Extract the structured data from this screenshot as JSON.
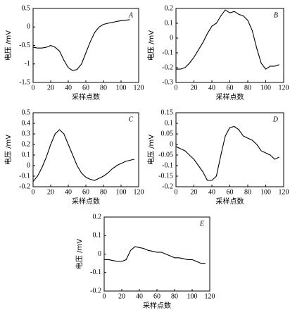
{
  "chart_data": [
    {
      "type": "line",
      "label": "A",
      "xlabel": "采样点数",
      "ylabel": "电压 /mV",
      "x": [
        0,
        5,
        10,
        15,
        20,
        25,
        30,
        35,
        40,
        45,
        50,
        55,
        60,
        65,
        70,
        75,
        80,
        85,
        90,
        95,
        100,
        105,
        110
      ],
      "values": [
        -0.55,
        -0.57,
        -0.57,
        -0.55,
        -0.5,
        -0.55,
        -0.65,
        -0.9,
        -1.1,
        -1.18,
        -1.15,
        -1.0,
        -0.7,
        -0.4,
        -0.15,
        0.0,
        0.07,
        0.1,
        0.12,
        0.15,
        0.17,
        0.18,
        0.2
      ],
      "xlim": [
        0,
        120
      ],
      "xticks": [
        0,
        20,
        40,
        60,
        80,
        100,
        120
      ],
      "ylim": [
        -1.5,
        0.5
      ],
      "yticks": [
        -1.5,
        -1,
        -0.5,
        0,
        0.5
      ],
      "color": "#000000"
    },
    {
      "type": "line",
      "label": "B",
      "xlabel": "采样点数",
      "ylabel": "电压 /mV",
      "x": [
        0,
        5,
        10,
        15,
        20,
        25,
        30,
        35,
        40,
        45,
        50,
        55,
        60,
        65,
        70,
        75,
        80,
        85,
        90,
        95,
        100,
        105,
        110,
        115
      ],
      "values": [
        -0.21,
        -0.21,
        -0.2,
        -0.17,
        -0.13,
        -0.08,
        -0.03,
        0.03,
        0.08,
        0.1,
        0.15,
        0.19,
        0.17,
        0.18,
        0.16,
        0.15,
        0.12,
        0.05,
        -0.07,
        -0.17,
        -0.21,
        -0.19,
        -0.19,
        -0.18
      ],
      "xlim": [
        0,
        120
      ],
      "xticks": [
        0,
        20,
        40,
        60,
        80,
        100,
        120
      ],
      "ylim": [
        -0.3,
        0.2
      ],
      "yticks": [
        -0.3,
        -0.2,
        -0.1,
        0,
        0.1,
        0.2
      ],
      "color": "#000000"
    },
    {
      "type": "line",
      "label": "C",
      "xlabel": "采样点数",
      "ylabel": "电压 /mV",
      "x": [
        0,
        5,
        10,
        15,
        20,
        25,
        30,
        35,
        40,
        45,
        50,
        55,
        60,
        65,
        70,
        75,
        80,
        85,
        90,
        95,
        100,
        105,
        110,
        115
      ],
      "values": [
        -0.15,
        -0.1,
        -0.02,
        0.08,
        0.2,
        0.3,
        0.34,
        0.3,
        0.2,
        0.1,
        0.0,
        -0.07,
        -0.11,
        -0.13,
        -0.14,
        -0.12,
        -0.1,
        -0.07,
        -0.03,
        0.0,
        0.02,
        0.04,
        0.05,
        0.06
      ],
      "xlim": [
        0,
        120
      ],
      "xticks": [
        0,
        20,
        40,
        60,
        80,
        100,
        120
      ],
      "ylim": [
        -0.2,
        0.5
      ],
      "yticks": [
        -0.2,
        -0.1,
        0,
        0.1,
        0.2,
        0.3,
        0.4,
        0.5
      ],
      "color": "#000000"
    },
    {
      "type": "line",
      "label": "D",
      "xlabel": "采样点数",
      "ylabel": "电压 /mV",
      "x": [
        0,
        5,
        10,
        15,
        20,
        25,
        30,
        35,
        40,
        45,
        50,
        55,
        60,
        65,
        70,
        75,
        80,
        85,
        90,
        95,
        100,
        105,
        110,
        115
      ],
      "values": [
        -0.01,
        -0.02,
        -0.03,
        -0.05,
        -0.07,
        -0.1,
        -0.13,
        -0.17,
        -0.17,
        -0.15,
        -0.05,
        0.04,
        0.08,
        0.085,
        0.07,
        0.04,
        0.03,
        0.02,
        0.0,
        -0.03,
        -0.04,
        -0.05,
        -0.07,
        -0.06
      ],
      "xlim": [
        0,
        120
      ],
      "xticks": [
        0,
        20,
        40,
        60,
        80,
        100,
        120
      ],
      "ylim": [
        -0.2,
        0.15
      ],
      "yticks": [
        -0.2,
        -0.15,
        -0.1,
        -0.05,
        0,
        0.05,
        0.1,
        0.15
      ],
      "color": "#000000"
    },
    {
      "type": "line",
      "label": "E",
      "xlabel": "采样点数",
      "ylabel": "电压 /mV",
      "x": [
        0,
        5,
        10,
        15,
        20,
        25,
        30,
        35,
        40,
        45,
        50,
        55,
        60,
        65,
        70,
        75,
        80,
        85,
        90,
        95,
        100,
        105,
        110,
        115
      ],
      "values": [
        -0.03,
        -0.03,
        -0.035,
        -0.04,
        -0.04,
        -0.03,
        0.02,
        0.04,
        0.035,
        0.03,
        0.02,
        0.015,
        0.01,
        0.01,
        0.0,
        -0.01,
        -0.02,
        -0.02,
        -0.025,
        -0.03,
        -0.03,
        -0.04,
        -0.05,
        -0.05
      ],
      "xlim": [
        0,
        120
      ],
      "xticks": [
        0,
        20,
        40,
        60,
        80,
        100,
        120
      ],
      "ylim": [
        -0.2,
        0.2
      ],
      "yticks": [
        -0.2,
        -0.1,
        0,
        0.1,
        0.2
      ],
      "color": "#000000"
    }
  ]
}
